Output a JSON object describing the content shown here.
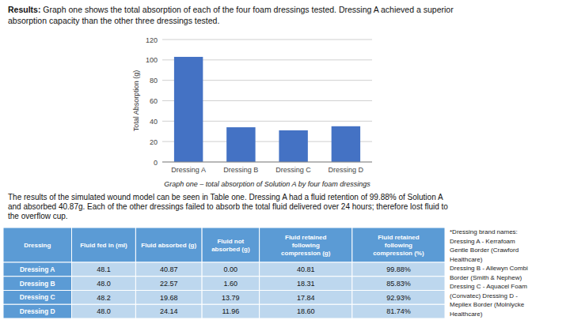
{
  "heading": {
    "bold": "Results:",
    "text": " Graph one shows the total absorption of each of the four foam dressings tested. Dressing A achieved a superior\nabsorption capacity than the other three dressings tested."
  },
  "chart_data": {
    "type": "bar",
    "title": "Graph one – total absorption of Solution A by four foam dressings",
    "categories": [
      "Dressing A",
      "Dressing B",
      "Dressing C",
      "Dressing D"
    ],
    "values": [
      103,
      34,
      31,
      35
    ],
    "color": "#4472C4",
    "ylabel": "Total Absorption (g)",
    "ylim": [
      0,
      120
    ],
    "yticks": [
      0,
      20,
      40,
      60,
      80,
      100,
      120
    ],
    "grid": true
  },
  "body_text": "The results of the simulated wound model can be seen in Table one. Dressing A had a fluid retention of 99.88% of Solution A\nand absorbed 40.87g. Each of the other dressings failed to absorb the total fluid delivered over 24 hours; therefore lost fluid to\nthe overflow cup.",
  "table": {
    "headers": [
      "Dressing",
      "Fluid fed in (ml)",
      "Fluid absorbed (g)",
      "Fluid not\nabsorbed (g)",
      "Fluid retained\nfollowing\ncompression (g)",
      "Fluid retained\nfollowing\ncompression (%)"
    ],
    "rows": [
      [
        "Dressing A",
        "48.1",
        "40.87",
        "0.00",
        "40.81",
        "99.88%"
      ],
      [
        "Dressing B",
        "48.0",
        "22.57",
        "1.60",
        "18.31",
        "85.83%"
      ],
      [
        "Dressing C",
        "48.2",
        "19.68",
        "13.79",
        "17.84",
        "92.93%"
      ],
      [
        "Dressing D",
        "48.0",
        "24.14",
        "11.96",
        "18.60",
        "81.74%"
      ]
    ],
    "header_color": "#5B9BD5",
    "cell_color": "#BDD7EE"
  },
  "footnote": "*Dressing brand names:\nDressing A - Kerrafoam\nGentle Border (Crawford\nHealthcare)\nDressing B - Allewyn Combi\nBorder (Smith & Nephew)\nDressing C - Aquacel Foam\n(Convatec) Dressing D -\nMepilex Border (Molnlycke\nHealthcare)"
}
